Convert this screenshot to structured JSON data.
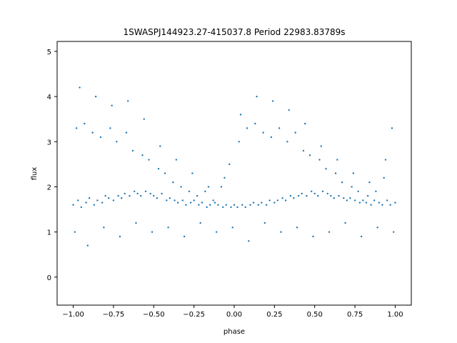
{
  "chart_data": {
    "type": "scatter",
    "title": "1SWASPJ144923.27-415037.8 Period 22983.83789s",
    "xlabel": "phase",
    "ylabel": "flux",
    "xlim": [
      -1.1,
      1.1
    ],
    "ylim": [
      -0.62,
      5.22
    ],
    "grid": false,
    "legend": "none",
    "marker_color": "#1f77b4",
    "x_ticks": [
      -1.0,
      -0.75,
      -0.5,
      -0.25,
      0.0,
      0.25,
      0.5,
      0.75,
      1.0
    ],
    "x_tick_labels": [
      "−1.00",
      "−0.75",
      "−0.50",
      "−0.25",
      "0.00",
      "0.25",
      "0.50",
      "0.75",
      "1.00"
    ],
    "y_ticks": [
      0,
      1,
      2,
      3,
      4,
      5
    ],
    "y_tick_labels": [
      "0",
      "1",
      "2",
      "3",
      "4",
      "5"
    ],
    "points": {
      "x": [
        -1.0,
        -0.97,
        -0.95,
        -0.92,
        -0.9,
        -0.87,
        -0.85,
        -0.82,
        -0.8,
        -0.78,
        -0.75,
        -0.72,
        -0.7,
        -0.68,
        -0.65,
        -0.62,
        -0.6,
        -0.58,
        -0.55,
        -0.52,
        -0.5,
        -0.48,
        -0.45,
        -0.42,
        -0.4,
        -0.37,
        -0.35,
        -0.32,
        -0.3,
        -0.27,
        -0.25,
        -0.22,
        -0.2,
        -0.17,
        -0.15,
        -0.12,
        -0.1,
        -0.07,
        -0.05,
        -0.02,
        0.0,
        0.02,
        0.05,
        0.07,
        0.1,
        0.12,
        0.15,
        0.17,
        0.2,
        0.22,
        0.25,
        0.27,
        0.3,
        0.32,
        0.35,
        0.37,
        0.4,
        0.42,
        0.45,
        0.48,
        0.5,
        0.52,
        0.55,
        0.58,
        0.6,
        0.62,
        0.65,
        0.68,
        0.7,
        0.72,
        0.75,
        0.78,
        0.8,
        0.82,
        0.85,
        0.87,
        0.9,
        0.92,
        0.95,
        0.97,
        1.0,
        -0.98,
        -0.93,
        -0.88,
        -0.83,
        -0.77,
        -0.73,
        -0.67,
        -0.63,
        -0.57,
        -0.53,
        -0.47,
        -0.43,
        -0.38,
        -0.33,
        -0.28,
        -0.23,
        -0.18,
        -0.13,
        -0.08,
        -0.03,
        0.03,
        0.08,
        0.13,
        0.18,
        0.23,
        0.28,
        0.33,
        0.38,
        0.43,
        0.47,
        0.53,
        0.57,
        0.63,
        0.67,
        0.73,
        0.77,
        0.83,
        0.88,
        0.93,
        0.98,
        -0.96,
        -0.86,
        -0.76,
        -0.66,
        -0.56,
        -0.46,
        -0.36,
        -0.26,
        -0.16,
        -0.06,
        0.04,
        0.14,
        0.24,
        0.34,
        0.44,
        0.54,
        0.64,
        0.74,
        0.84,
        0.94,
        -0.99,
        -0.91,
        -0.81,
        -0.71,
        -0.61,
        -0.51,
        -0.41,
        -0.31,
        -0.21,
        -0.11,
        -0.01,
        0.09,
        0.19,
        0.29,
        0.39,
        0.49,
        0.59,
        0.69,
        0.79,
        0.89,
        0.99
      ],
      "y": [
        1.6,
        1.7,
        1.55,
        1.65,
        1.75,
        1.6,
        1.7,
        1.65,
        1.8,
        1.75,
        1.7,
        1.8,
        1.75,
        1.85,
        1.8,
        1.9,
        1.85,
        1.8,
        1.9,
        1.85,
        1.8,
        1.75,
        1.85,
        1.7,
        1.75,
        1.7,
        1.65,
        1.7,
        1.6,
        1.65,
        1.7,
        1.6,
        1.65,
        1.55,
        1.6,
        1.65,
        1.6,
        1.55,
        1.6,
        1.55,
        1.6,
        1.55,
        1.6,
        1.55,
        1.6,
        1.65,
        1.6,
        1.65,
        1.6,
        1.7,
        1.65,
        1.7,
        1.75,
        1.7,
        1.8,
        1.75,
        1.8,
        1.85,
        1.8,
        1.9,
        1.85,
        1.8,
        1.9,
        1.85,
        1.8,
        1.75,
        1.8,
        1.75,
        1.7,
        1.75,
        1.7,
        1.65,
        1.7,
        1.65,
        1.6,
        1.7,
        1.65,
        1.6,
        1.7,
        1.6,
        1.65,
        3.3,
        3.4,
        3.2,
        3.1,
        3.3,
        3.0,
        3.2,
        2.8,
        2.7,
        2.6,
        2.4,
        2.3,
        2.1,
        2.0,
        1.9,
        1.8,
        1.9,
        1.7,
        2.0,
        2.5,
        3.0,
        3.3,
        3.4,
        3.2,
        3.1,
        3.3,
        3.0,
        3.2,
        2.8,
        2.7,
        2.6,
        2.4,
        2.3,
        2.1,
        2.0,
        1.9,
        1.8,
        1.9,
        2.2,
        3.3,
        4.2,
        4.0,
        3.8,
        3.9,
        3.5,
        2.9,
        2.6,
        2.3,
        2.0,
        2.2,
        3.6,
        4.0,
        3.9,
        3.7,
        3.4,
        2.9,
        2.6,
        2.3,
        2.1,
        2.6,
        1.0,
        0.7,
        1.1,
        0.9,
        1.2,
        1.0,
        1.1,
        0.9,
        1.2,
        1.0,
        1.1,
        0.8,
        1.2,
        1.0,
        1.1,
        0.9,
        1.0,
        1.2,
        0.9,
        1.1,
        1.0
      ]
    }
  }
}
